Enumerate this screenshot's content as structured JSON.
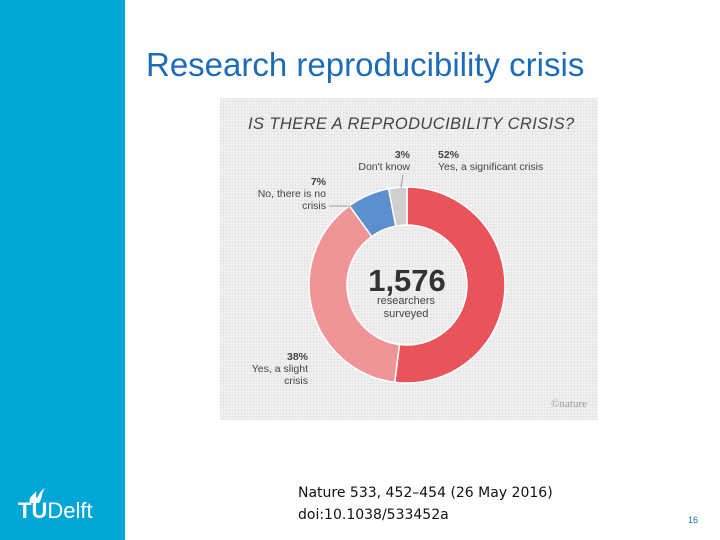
{
  "slide": {
    "title": "Research reproducibility crisis",
    "citation_line1": "Nature 533, 452–454 (26 May 2016)",
    "citation_line2": "doi:10.1038/533452a",
    "page_number": "16"
  },
  "logo": {
    "tu": "TU",
    "delft": "Delft",
    "brand_color": "#00a6d6",
    "icon": "flame-icon"
  },
  "chart_data": {
    "type": "pie",
    "title": "IS THERE A REPRODUCIBILITY CRISIS?",
    "center_number": "1,576",
    "center_line1": "researchers",
    "center_line2": "surveyed",
    "credit": "©nature",
    "slices": [
      {
        "label_pct": "52%",
        "label_text": [
          "Yes, a significant crisis"
        ],
        "value": 52,
        "color": "#e8545a"
      },
      {
        "label_pct": "38%",
        "label_text": [
          "Yes, a slight",
          "crisis"
        ],
        "value": 38,
        "color": "#ef9497"
      },
      {
        "label_pct": "7%",
        "label_text": [
          "No, there is no",
          "crisis"
        ],
        "value": 7,
        "color": "#5b8fcf"
      },
      {
        "label_pct": "3%",
        "label_text": [
          "Don't know"
        ],
        "value": 3,
        "color": "#cfcfcf"
      }
    ]
  }
}
